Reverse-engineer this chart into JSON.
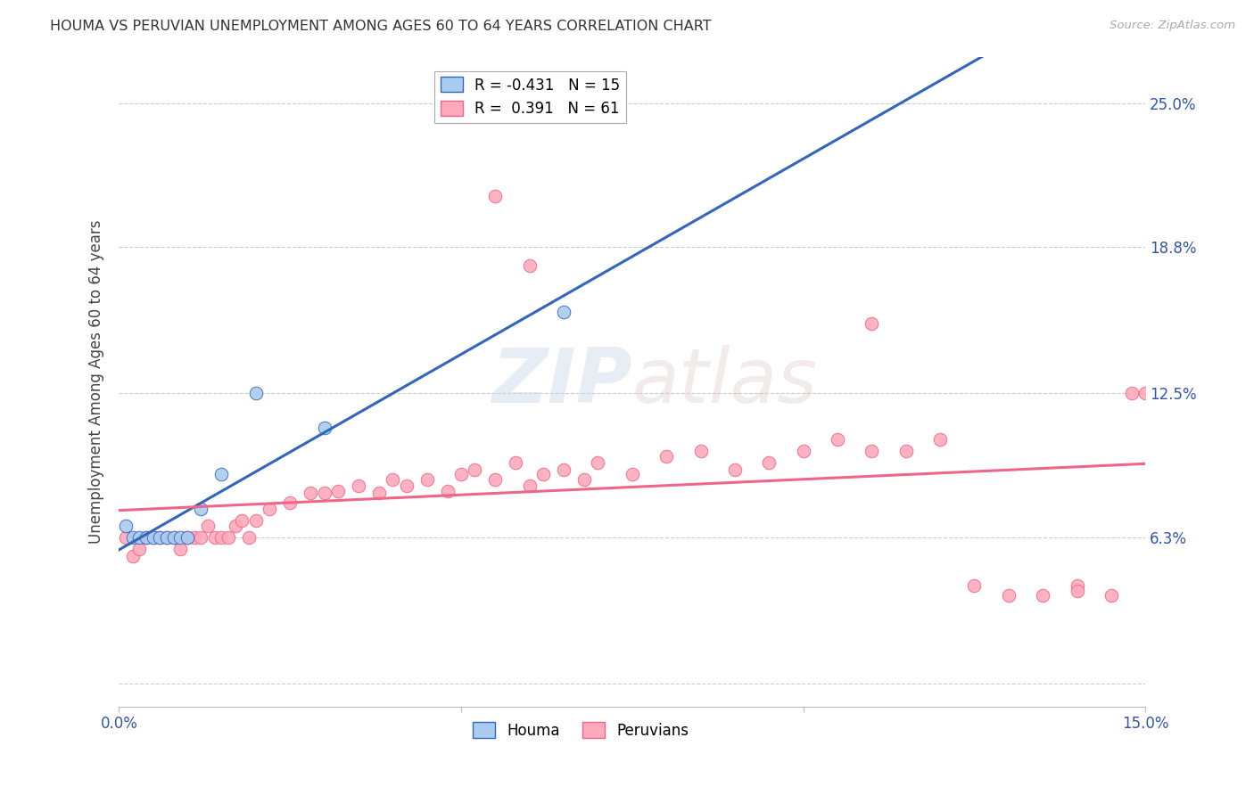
{
  "title": "HOUMA VS PERUVIAN UNEMPLOYMENT AMONG AGES 60 TO 64 YEARS CORRELATION CHART",
  "source": "Source: ZipAtlas.com",
  "ylabel": "Unemployment Among Ages 60 to 64 years",
  "xlim": [
    0.0,
    0.15
  ],
  "ylim": [
    -0.01,
    0.27
  ],
  "ytick_positions": [
    0.0,
    0.063,
    0.125,
    0.188,
    0.25
  ],
  "ytick_labels": [
    "",
    "6.3%",
    "12.5%",
    "18.8%",
    "25.0%"
  ],
  "houma_label": "Houma",
  "peruvians_label": "Peruvians",
  "houma_r": "R = -0.431",
  "houma_n": "N = 15",
  "peruvians_r": "R =  0.391",
  "peruvians_n": "N = 61",
  "houma_color": "#AACCEE",
  "peruvians_color": "#FFAABB",
  "houma_line_color": "#3366BB",
  "peruvians_line_color": "#EE6688",
  "watermark_zip": "ZIP",
  "watermark_atlas": "atlas",
  "background_color": "#FFFFFF",
  "grid_color": "#CCCCCC",
  "houma_x": [
    0.001,
    0.002,
    0.003,
    0.004,
    0.005,
    0.006,
    0.007,
    0.008,
    0.009,
    0.01,
    0.012,
    0.015,
    0.02,
    0.03,
    0.065
  ],
  "houma_y": [
    0.068,
    0.063,
    0.063,
    0.063,
    0.063,
    0.063,
    0.063,
    0.063,
    0.063,
    0.063,
    0.075,
    0.09,
    0.125,
    0.11,
    0.16
  ],
  "peruvians_x": [
    0.001,
    0.002,
    0.003,
    0.004,
    0.005,
    0.006,
    0.007,
    0.008,
    0.009,
    0.01,
    0.011,
    0.012,
    0.013,
    0.014,
    0.015,
    0.016,
    0.017,
    0.018,
    0.019,
    0.02,
    0.022,
    0.025,
    0.028,
    0.03,
    0.032,
    0.035,
    0.038,
    0.04,
    0.042,
    0.045,
    0.048,
    0.05,
    0.052,
    0.055,
    0.058,
    0.06,
    0.062,
    0.065,
    0.068,
    0.07,
    0.075,
    0.08,
    0.085,
    0.09,
    0.095,
    0.1,
    0.105,
    0.11,
    0.115,
    0.12,
    0.125,
    0.13,
    0.135,
    0.14,
    0.145,
    0.148,
    0.15,
    0.055,
    0.06,
    0.11,
    0.14
  ],
  "peruvians_y": [
    0.063,
    0.055,
    0.058,
    0.063,
    0.063,
    0.063,
    0.063,
    0.063,
    0.058,
    0.063,
    0.063,
    0.063,
    0.068,
    0.063,
    0.063,
    0.063,
    0.068,
    0.07,
    0.063,
    0.07,
    0.075,
    0.078,
    0.082,
    0.082,
    0.083,
    0.085,
    0.082,
    0.088,
    0.085,
    0.088,
    0.083,
    0.09,
    0.092,
    0.088,
    0.095,
    0.085,
    0.09,
    0.092,
    0.088,
    0.095,
    0.09,
    0.098,
    0.1,
    0.092,
    0.095,
    0.1,
    0.105,
    0.1,
    0.1,
    0.105,
    0.042,
    0.038,
    0.038,
    0.042,
    0.038,
    0.125,
    0.125,
    0.21,
    0.18,
    0.155,
    0.04
  ]
}
